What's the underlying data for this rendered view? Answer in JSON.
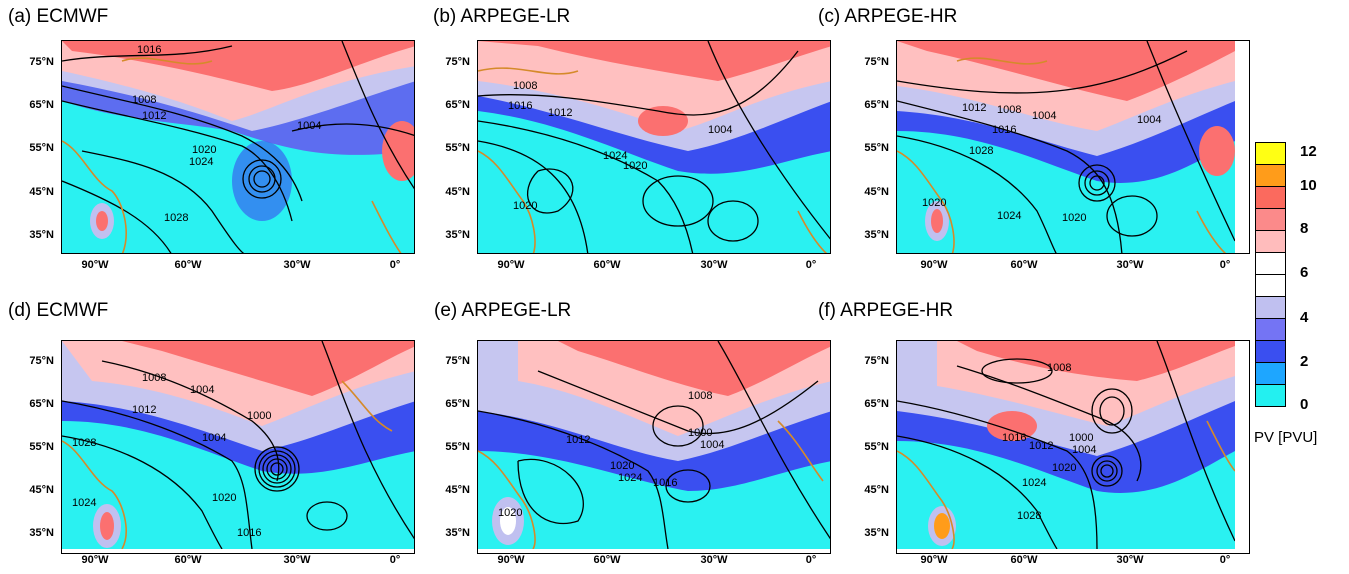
{
  "panels": [
    {
      "label": "(a)  ECMWF"
    },
    {
      "label": "(b) ARPEGE-LR"
    },
    {
      "label": "(c) ARPEGE-HR"
    },
    {
      "label": "(d)  ECMWF"
    },
    {
      "label": "(e) ARPEGE-LR"
    },
    {
      "label": "(f) ARPEGE-HR"
    }
  ],
  "lat_labels": [
    "75°N",
    "65°N",
    "55°N",
    "45°N",
    "35°N"
  ],
  "lon_labels": [
    "90°W",
    "60°W",
    "30°W",
    "0°"
  ],
  "contours": {
    "a": [
      "1016",
      "1008",
      "1012",
      "1004",
      "1020",
      "1024",
      "1028"
    ],
    "b": [
      "1008",
      "1016",
      "1012",
      "1004",
      "1024",
      "1020",
      "1020"
    ],
    "c": [
      "1012",
      "1008",
      "1004",
      "1004",
      "1016",
      "1028",
      "1020",
      "1024",
      "1020"
    ],
    "d": [
      "1008",
      "1004",
      "1012",
      "1000",
      "1004",
      "1028",
      "1024",
      "1020",
      "1016"
    ],
    "e": [
      "1008",
      "1000",
      "1004",
      "1012",
      "1020",
      "1024",
      "1016",
      "1020"
    ],
    "f": [
      "1008",
      "1012",
      "1016",
      "1000",
      "1004",
      "1024",
      "1020",
      "1028"
    ]
  },
  "colorbar": {
    "title": "PV [PVU]",
    "labels": [
      "12",
      "10",
      "8",
      "6",
      "4",
      "2",
      "0"
    ],
    "colors": [
      "#ffff14",
      "#ff9c1a",
      "#fb6a5e",
      "#ffbcbc",
      "#ffffff",
      "#c0c0f0",
      "#7474f4",
      "#3a4ff0",
      "#1ea6ff",
      "#23f0f0"
    ]
  }
}
